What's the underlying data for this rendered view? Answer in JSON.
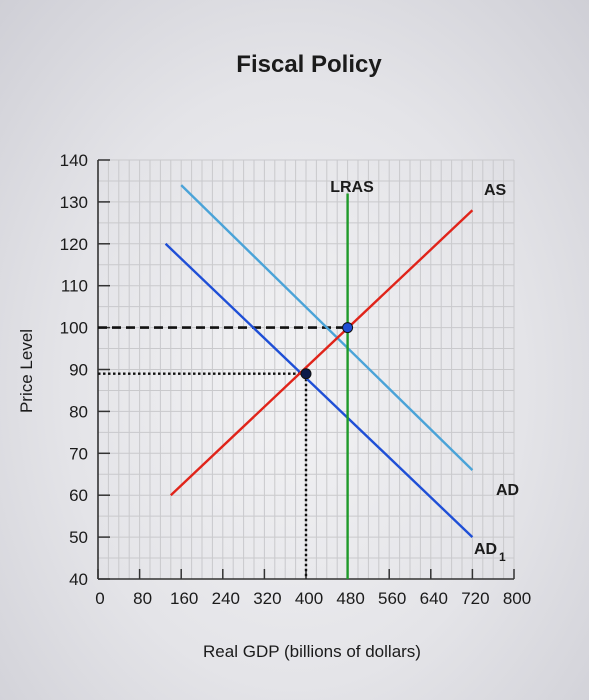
{
  "chart_data": {
    "type": "line",
    "title": "Fiscal Policy",
    "xlabel": "Real GDP (billions of dollars)",
    "ylabel": "Price Level",
    "x_ticks": [
      0,
      80,
      160,
      240,
      320,
      400,
      480,
      560,
      640,
      720,
      800
    ],
    "y_ticks": [
      40,
      50,
      60,
      70,
      80,
      90,
      100,
      110,
      120,
      130,
      140
    ],
    "xlim": [
      0,
      800
    ],
    "ylim": [
      40,
      140
    ],
    "grid": true,
    "series": [
      {
        "name": "AD",
        "color": "#4aa3d8",
        "points": [
          [
            160,
            134
          ],
          [
            720,
            66
          ]
        ]
      },
      {
        "name": "AD1",
        "color": "#1f4fd6",
        "points": [
          [
            130,
            120
          ],
          [
            720,
            50
          ]
        ]
      },
      {
        "name": "AS",
        "color": "#e0241a",
        "points": [
          [
            140,
            60
          ],
          [
            720,
            128
          ]
        ]
      },
      {
        "name": "LRAS",
        "color": "#1f9a2a",
        "points": [
          [
            480,
            132
          ],
          [
            480,
            40
          ]
        ]
      }
    ],
    "curve_labels": {
      "AS": "AS",
      "LRAS": "LRAS",
      "AD": "AD",
      "AD1_main": "AD",
      "AD1_sub": "1"
    },
    "reference_lines": [
      {
        "style": "dashed",
        "color": "#111111",
        "points": [
          [
            0,
            100
          ],
          [
            480,
            100
          ]
        ]
      },
      {
        "style": "dotted",
        "color": "#111111",
        "points": [
          [
            0,
            89
          ],
          [
            400,
            89
          ]
        ]
      },
      {
        "style": "dotted",
        "color": "#111111",
        "points": [
          [
            400,
            89
          ],
          [
            400,
            40
          ]
        ]
      }
    ],
    "equilibria": [
      {
        "x": 480,
        "y": 100,
        "color": "#1f4fd6"
      },
      {
        "x": 400,
        "y": 89,
        "color": "#0b1a4a"
      }
    ]
  }
}
